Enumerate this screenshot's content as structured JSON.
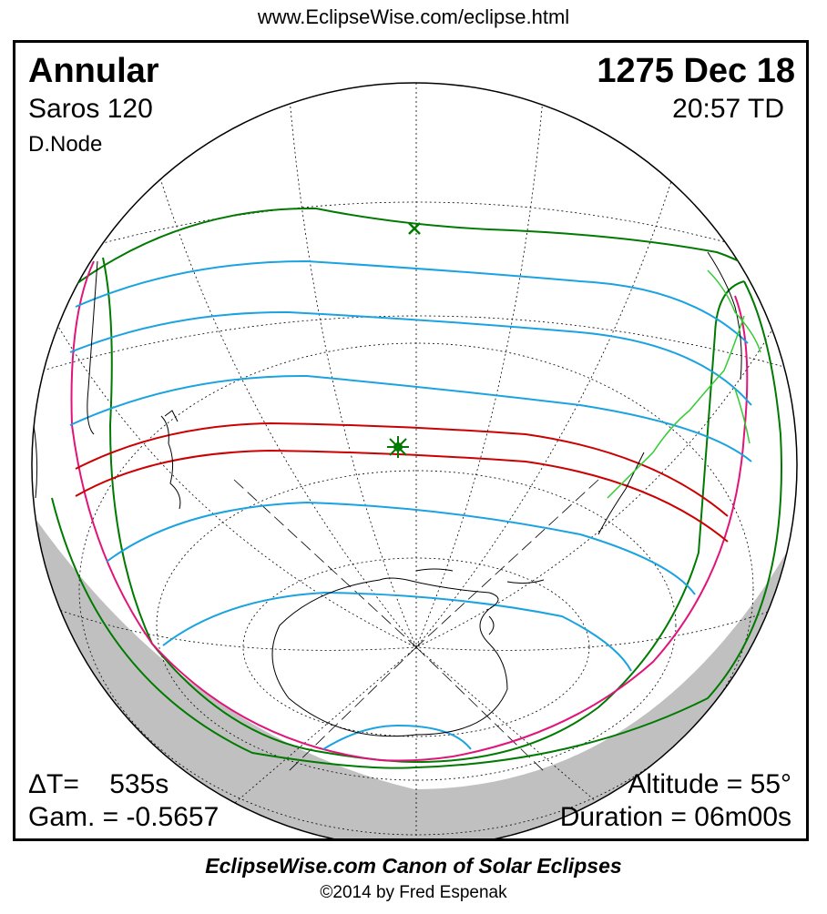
{
  "header": {
    "url": "www.EclipseWise.com/eclipse.html"
  },
  "eclipse": {
    "type": "Annular",
    "date": "1275 Dec 18",
    "saros": "Saros 120",
    "time": "20:57 TD",
    "node": "D.Node",
    "delta_t": "ΔT=    535s",
    "gamma": "Gam. = -0.5657",
    "altitude": "Altitude = 55°",
    "duration": "Duration = 06m00s"
  },
  "footer": {
    "title": "EclipseWise.com Canon of Solar Eclipses",
    "copyright": "©2014 by Fred Espenak"
  },
  "colors": {
    "penumbral_limit": "#007a00",
    "partial_contour": "#1aa3e0",
    "central_path": "#cc0000",
    "rise_set_curve": "#e0147a",
    "coastline": "#000000",
    "highlight_coast": "#33cc33",
    "night_side": "#c0c0c0"
  },
  "markers": [
    {
      "name": "greatest-eclipse-point",
      "symbol": "star"
    },
    {
      "name": "sub-solar-point",
      "symbol": "x"
    }
  ]
}
